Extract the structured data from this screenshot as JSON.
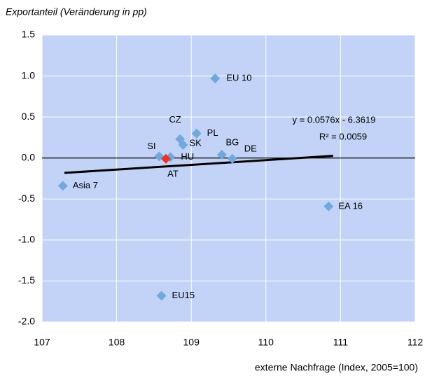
{
  "chart_data": {
    "type": "scatter",
    "y_axis_title": "Exportanteil (Veränderung in pp)",
    "x_axis_title": "externe Nachfrage (Index, 2005=100)",
    "xlim": [
      107,
      112
    ],
    "xticks": [
      107,
      108,
      109,
      110,
      111,
      112
    ],
    "ylim": [
      -2.0,
      1.5
    ],
    "yticks": [
      1.5,
      {
        "value": 1.0,
        "label": "1.0"
      },
      0.5,
      {
        "value": 0.0,
        "label": "0.0"
      },
      -0.5,
      {
        "value": -1.0,
        "label": "-1.0"
      },
      -1.5,
      {
        "value": -2.0,
        "label": "-2.0"
      }
    ],
    "grid": true,
    "legend": false,
    "background": "#c2d3f7",
    "series": [
      {
        "color": "#72a9dc",
        "x": [
          109.32,
          108.85,
          109.07,
          108.89,
          108.57,
          108.72,
          109.41,
          109.55,
          107.28,
          110.84,
          108.6
        ],
        "values": [
          0.97,
          0.23,
          0.3,
          0.16,
          0.02,
          0.01,
          0.04,
          -0.01,
          -0.34,
          -0.59,
          -1.68
        ],
        "point_labels": [
          "EU 10",
          "CZ",
          "PL",
          "SK",
          "SI",
          "HU",
          "BG",
          "DE",
          "Asia 7",
          "EA 16",
          "EU15"
        ]
      },
      {
        "color": "#e8322b",
        "x": [
          108.66
        ],
        "values": [
          -0.01
        ],
        "point_labels": [
          "AT"
        ]
      }
    ],
    "trendline": {
      "slope": 0.0576,
      "intercept": -6.3619,
      "x_range": [
        107.3,
        110.9
      ],
      "color": "#000000",
      "equation": "y = 0.0576x - 6.3619",
      "r_squared": "R² = 0.0059"
    }
  }
}
